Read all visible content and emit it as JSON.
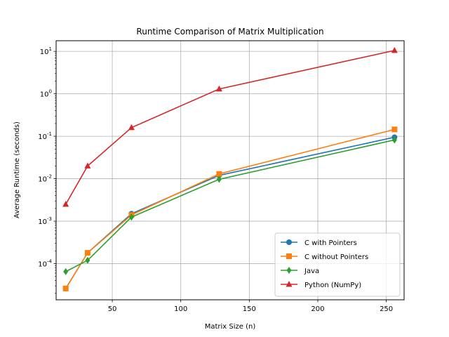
{
  "chart_data": {
    "type": "line",
    "title": "Runtime Comparison of Matrix Multiplication",
    "xlabel": "Matrix Size (n)",
    "ylabel": "Average Runtime (seconds)",
    "x": [
      16,
      32,
      64,
      128,
      256
    ],
    "xlim": [
      9,
      263
    ],
    "ylim": [
      1.41e-05,
      17.8
    ],
    "yscale": "log",
    "xticks": [
      50,
      100,
      150,
      200,
      250
    ],
    "xtick_labels": [
      "50",
      "100",
      "150",
      "200",
      "250"
    ],
    "yticks": [
      0.0001,
      0.001,
      0.01,
      0.1,
      1,
      10
    ],
    "ytick_exponents": [
      "-4",
      "-3",
      "-2",
      "-1",
      "0",
      "1"
    ],
    "ytick_base": "10",
    "grid": true,
    "legend_position": "lower-right",
    "series": [
      {
        "name": "C with Pointers",
        "color": "#1f77b4",
        "marker": "circle",
        "values": [
          2.6e-05,
          0.00018,
          0.0015,
          0.012,
          0.095
        ]
      },
      {
        "name": "C without Pointers",
        "color": "#ff7f0e",
        "marker": "square",
        "values": [
          2.6e-05,
          0.00018,
          0.0014,
          0.013,
          0.145
        ]
      },
      {
        "name": "Java",
        "color": "#2ca02c",
        "marker": "diamond",
        "values": [
          6.5e-05,
          0.00012,
          0.00125,
          0.0097,
          0.082
        ]
      },
      {
        "name": "Python (NumPy)",
        "color": "#d62728",
        "marker": "triangle",
        "values": [
          0.0025,
          0.02,
          0.16,
          1.3,
          10.5
        ]
      }
    ]
  }
}
